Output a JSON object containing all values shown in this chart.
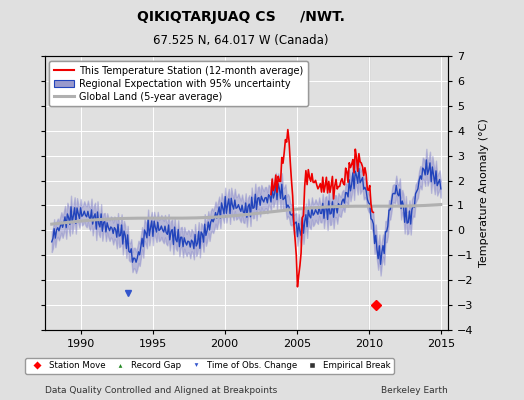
{
  "title": "QIKIQTARJUAQ CS     /NWT.",
  "subtitle": "67.525 N, 64.017 W (Canada)",
  "ylabel": "Temperature Anomaly (°C)",
  "xlabel_left": "Data Quality Controlled and Aligned at Breakpoints",
  "xlabel_right": "Berkeley Earth",
  "xlim": [
    1987.5,
    2015.5
  ],
  "ylim": [
    -4,
    7
  ],
  "yticks": [
    -4,
    -3,
    -2,
    -1,
    0,
    1,
    2,
    3,
    4,
    5,
    6,
    7
  ],
  "xticks": [
    1990,
    1995,
    2000,
    2005,
    2010,
    2015
  ],
  "background_color": "#e0e0e0",
  "plot_bg_color": "#e0e0e0",
  "station_move_x": 2010.5,
  "station_move_y": -3.0,
  "time_obs_change_x": 1993.3,
  "time_obs_change_y": -2.5,
  "vertical_line_x": 2010.0,
  "legend_labels": [
    "This Temperature Station (12-month average)",
    "Regional Expectation with 95% uncertainty",
    "Global Land (5-year average)"
  ],
  "legend_colors": [
    "#ff0000",
    "#3333cc",
    "#aaaaaa"
  ],
  "marker_legend": [
    "Station Move",
    "Record Gap",
    "Time of Obs. Change",
    "Empirical Break"
  ]
}
